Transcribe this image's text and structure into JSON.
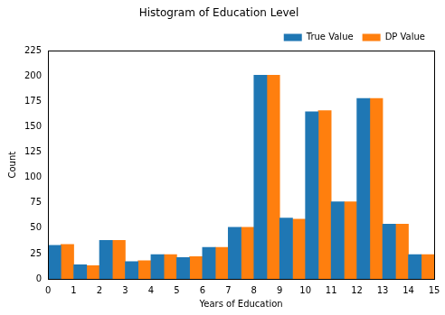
{
  "chart_data": {
    "type": "histogram",
    "title": "Histogram of Education Level",
    "x_label": "Years of Education",
    "y_label": "Count",
    "bins": [
      0,
      1,
      2,
      3,
      4,
      5,
      6,
      7,
      8,
      9,
      10,
      11,
      12,
      13,
      14,
      15
    ],
    "series": [
      {
        "name": "True Value",
        "color": "#1f77b4",
        "values": [
          33,
          14,
          38,
          17,
          24,
          21,
          31,
          51,
          201,
          60,
          165,
          76,
          178,
          54,
          24
        ]
      },
      {
        "name": "DP Value",
        "color": "#ff7f0e",
        "values": [
          34,
          13,
          38,
          18,
          24,
          22,
          31,
          51,
          201,
          59,
          166,
          76,
          178,
          54,
          24
        ]
      }
    ],
    "xlim": [
      0,
      15
    ],
    "xticks": [
      0,
      1,
      2,
      3,
      4,
      5,
      6,
      7,
      8,
      9,
      10,
      11,
      12,
      13,
      14,
      15
    ],
    "ylim": [
      0,
      225
    ],
    "yticks": [
      0,
      25,
      50,
      75,
      100,
      125,
      150,
      175,
      200,
      225
    ],
    "grid": false,
    "legend": "upper right"
  }
}
